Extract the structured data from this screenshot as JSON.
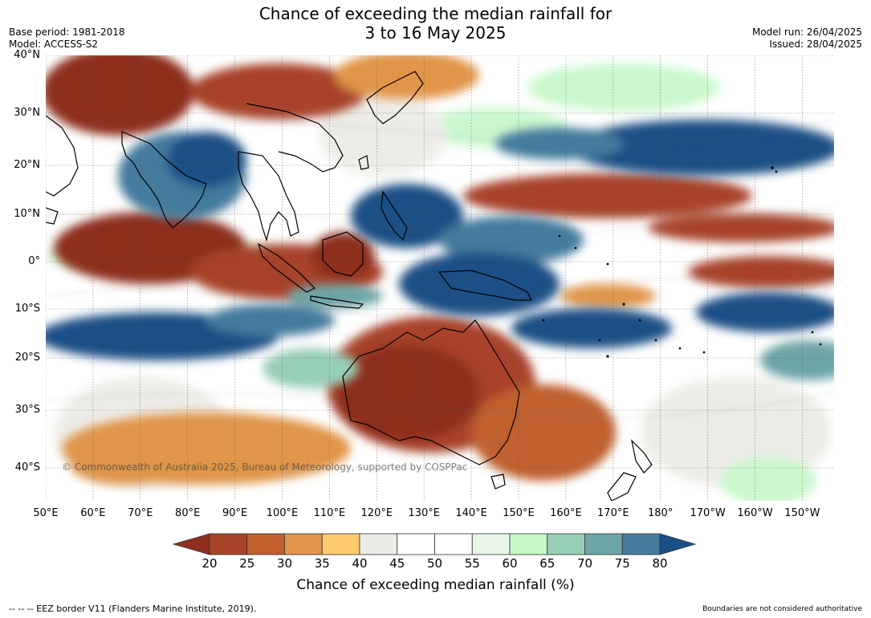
{
  "title_line1": "Chance of exceeding the median rainfall for",
  "title_line2": "3 to 16 May 2025",
  "base_period": "Base period: 1981-2018",
  "model": "Model: ACCESS-S2",
  "model_run": "Model run: 26/04/2025",
  "issued": "Issued: 28/04/2025",
  "lat_labels": [
    "40°N",
    "30°N",
    "20°N",
    "10°N",
    "0°",
    "10°S",
    "20°S",
    "30°S",
    "40°S"
  ],
  "lon_labels": [
    "50°E",
    "60°E",
    "70°E",
    "80°E",
    "90°E",
    "100°E",
    "110°E",
    "120°E",
    "130°E",
    "140°E",
    "150°E",
    "160°E",
    "170°E",
    "180°",
    "170°W",
    "160°W",
    "150°W"
  ],
  "copyright": "© Commonwealth of Australia 2025, Bureau of Meteorology, supported by COSPPac",
  "colorbar": {
    "ticks": [
      "20",
      "25",
      "30",
      "35",
      "40",
      "45",
      "50",
      "55",
      "60",
      "65",
      "70",
      "75",
      "80"
    ],
    "label": "Chance of exceeding median rainfall (%)",
    "colors": [
      "#8e2e1f",
      "#a8432a",
      "#c0602f",
      "#e0954a",
      "#fdcb6e",
      "#ecebe6",
      "#ffffff",
      "#ffffff",
      "#e8f5e9",
      "#c5f7c9",
      "#98ceb8",
      "#6ea5a7",
      "#457b9d",
      "#1a4f86"
    ]
  },
  "footer_left": "--  --  -- EEZ border V11 (Flanders Marine Institute, 2019).",
  "footer_right": "Boundaries are not considered authoritative"
}
